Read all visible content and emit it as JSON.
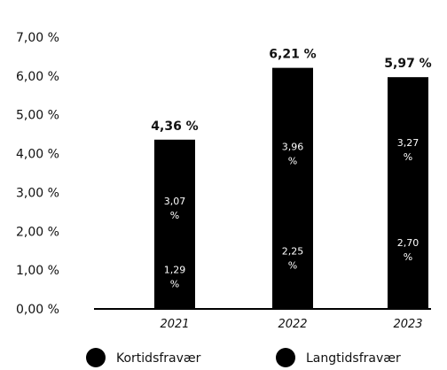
{
  "chart_data": {
    "type": "bar",
    "stacked": true,
    "categories": [
      "2021",
      "2022",
      "2023"
    ],
    "series": [
      {
        "name": "Kortidsfravær",
        "values": [
          1.29,
          2.25,
          2.7
        ],
        "labels": [
          "1,29 %",
          "2,25 %",
          "2,70 %"
        ]
      },
      {
        "name": "Langtidsfravær",
        "values": [
          3.07,
          3.96,
          3.27
        ],
        "labels": [
          "3,07 %",
          "3,96 %",
          "3,27 %"
        ]
      }
    ],
    "totals": [
      4.36,
      6.21,
      5.97
    ],
    "total_labels": [
      "4,36 %",
      "6,21 %",
      "5,97 %"
    ],
    "ylim": [
      0,
      7
    ],
    "yticks": [
      0,
      1,
      2,
      3,
      4,
      5,
      6,
      7
    ],
    "ytick_labels": [
      "0,00 %",
      "1,00 %",
      "2,00 %",
      "3,00 %",
      "4,00 %",
      "5,00 %",
      "6,00 %",
      "7,00 %"
    ],
    "grid": false,
    "legend_position": "bottom",
    "colors": {
      "bar": "#000000",
      "text": "#111111",
      "label_on_bar": "#ffffff"
    }
  }
}
